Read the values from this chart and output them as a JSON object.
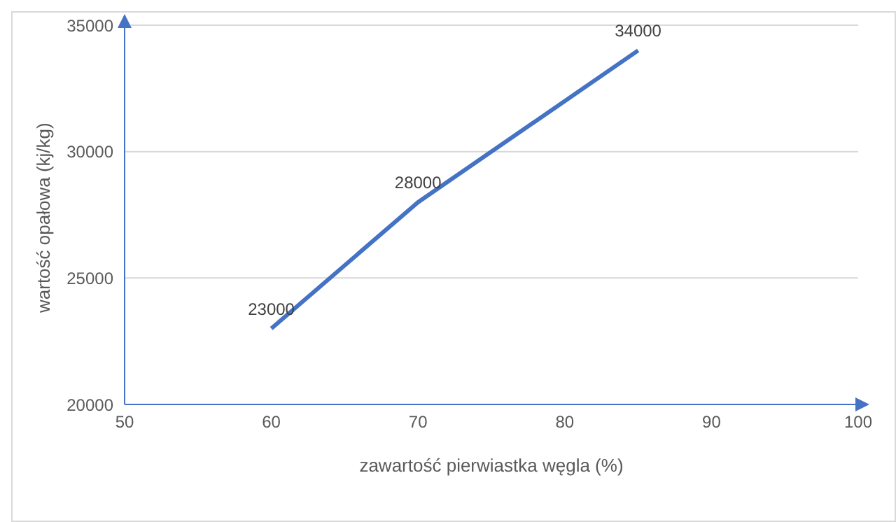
{
  "chart_data": {
    "type": "line",
    "xlabel": "zawartość pierwiastka węgla (%)",
    "ylabel": "wartość opałowa (kj/kg)",
    "x": [
      60,
      70,
      85
    ],
    "series": [
      {
        "color": "#4472c4",
        "values": [
          23000,
          28000,
          34000
        ]
      }
    ],
    "xlim": [
      50,
      100
    ],
    "xticks": [
      50,
      60,
      70,
      80,
      90,
      100
    ],
    "ylim": [
      20000,
      35000
    ],
    "yticks": [
      20000,
      25000,
      30000,
      35000
    ],
    "grid": "y",
    "data_labels": true,
    "marker": "none",
    "line_style": "solid"
  }
}
